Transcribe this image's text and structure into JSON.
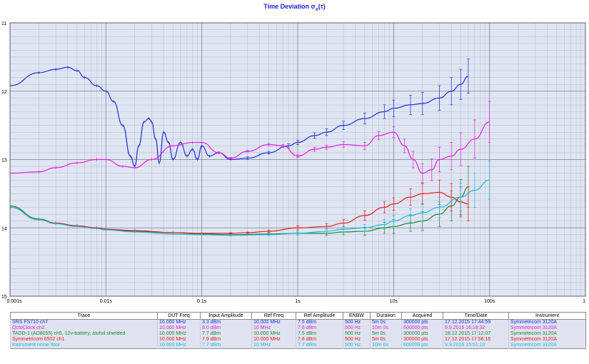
{
  "title": "Time Deviation σx(τ)",
  "title_main": "Time Deviation σ",
  "title_sub": "x",
  "title_tail": "(τ)",
  "table": {
    "headers": [
      "Trace",
      "DUT Freq",
      "Input Amplitude",
      "Ref Freq",
      "Ref Amplitude",
      "ENBW",
      "Duration",
      "Acquired",
      "Time/Date",
      "Instrument"
    ],
    "rows": [
      {
        "color": "#1f2fd4",
        "cells": [
          "SRS FS710 ch7",
          "10.000 MHz",
          "3.3 dBm",
          "10.000 MHz",
          "7.5 dBm",
          "500 Hz",
          "5m 0s",
          "300000 pts",
          "17.12.2015 17:44:59",
          "Symmetricom 3120A"
        ]
      },
      {
        "color": "#e81ce0",
        "cells": [
          "OctoClock ch2",
          "10.000 MHz",
          "8.0 dBm",
          "10 MHz",
          "7.6 dBm",
          "500 Hz",
          "10m 0s",
          "600000 pts",
          "9.9.2016 16:18:32",
          "Symmetricom 3120A"
        ]
      },
      {
        "color": "#1c8a2c",
        "cells": [
          "TADD-1 (AD8055) ch5, 12v-battery, alufoil shielded",
          "10.000 MHz",
          "7.7 dBm",
          "10.000 MHz",
          "7.5 dBm",
          "500 Hz",
          "5m 0s",
          "300000 pts",
          "18.12.2015 17:12:07",
          "Symmetricom 3120A"
        ]
      },
      {
        "color": "#e81c1c",
        "cells": [
          "Symmetricom 6502 ch1",
          "10.000 MHz",
          "7.9 dBm",
          "10.000 MHz",
          "7.8 dBm",
          "500 Hz",
          "5m 0s",
          "300000 pts",
          "17.12.2015 17:56:16",
          "Symmetricom 3120A"
        ]
      },
      {
        "color": "#1cb8e0",
        "cells": [
          "Instrument noise floor",
          "10.000 MHz",
          "7.7 dBm",
          "10 MHz",
          "7.7 dBm",
          "500 Hz",
          "10m 0s",
          "600000 pts",
          "9.9.2016 15:51:10",
          "Symmetricom 3120A"
        ]
      }
    ]
  },
  "chart_data": {
    "type": "line",
    "title": "Time Deviation σx(τ)",
    "xlabel": "",
    "ylabel": "",
    "x_scale": "log",
    "xlim": [
      0.001,
      1000
    ],
    "x_ticks": [
      "0.001s",
      "0.01s",
      "0.1s",
      "1s",
      "10s",
      "100s",
      "1"
    ],
    "ylim_exponent": [
      -11,
      -15
    ],
    "y_ticks": [
      "11",
      "12",
      "13",
      "14",
      "15"
    ],
    "grid": true,
    "background": "#e0e5f3",
    "series": [
      {
        "name": "SRS FS710 ch7",
        "color": "#1f2fd4",
        "x": [
          0.001,
          0.002,
          0.003,
          0.004,
          0.005,
          0.006,
          0.008,
          0.01,
          0.012,
          0.015,
          0.018,
          0.02,
          0.022,
          0.025,
          0.028,
          0.03,
          0.033,
          0.036,
          0.04,
          0.045,
          0.05,
          0.06,
          0.07,
          0.08,
          0.09,
          0.1,
          0.12,
          0.15,
          0.2,
          0.3,
          0.5,
          0.8,
          1,
          1.5,
          2,
          3,
          5,
          8,
          10,
          15,
          20,
          30,
          40,
          50,
          60
        ],
        "y": [
          11.92,
          11.73,
          11.68,
          11.65,
          11.7,
          11.8,
          11.92,
          12.0,
          12.15,
          12.5,
          12.95,
          13.1,
          12.8,
          12.45,
          12.4,
          12.45,
          12.7,
          13.05,
          12.6,
          12.75,
          13.0,
          12.75,
          12.95,
          12.85,
          13.0,
          12.8,
          12.95,
          12.9,
          13.0,
          12.98,
          12.9,
          12.8,
          12.75,
          12.65,
          12.6,
          12.5,
          12.4,
          12.3,
          12.25,
          12.2,
          12.18,
          12.1,
          12.0,
          11.9,
          11.78
        ],
        "err": [
          0,
          0,
          0,
          0,
          0,
          0,
          0,
          0,
          0,
          0,
          0,
          0,
          0,
          0,
          0,
          0,
          0,
          0,
          0,
          0,
          0,
          0,
          0,
          0,
          0,
          0,
          0,
          0,
          0,
          0.02,
          0.02,
          0.03,
          0.03,
          0.04,
          0.05,
          0.06,
          0.08,
          0.1,
          0.12,
          0.14,
          0.16,
          0.18,
          0.2,
          0.22,
          0.25
        ]
      },
      {
        "name": "OctoClock ch2",
        "color": "#e81ce0",
        "x": [
          0.001,
          0.002,
          0.003,
          0.005,
          0.008,
          0.01,
          0.015,
          0.02,
          0.03,
          0.05,
          0.08,
          0.1,
          0.15,
          0.2,
          0.3,
          0.5,
          0.7,
          1,
          1.5,
          2,
          3,
          5,
          7,
          10,
          13,
          16,
          20,
          25,
          30,
          40,
          50,
          70,
          100
        ],
        "y": [
          13.2,
          13.18,
          13.12,
          13.05,
          13.0,
          13.0,
          13.1,
          13.12,
          13.0,
          12.8,
          12.75,
          12.75,
          12.9,
          12.98,
          12.88,
          12.78,
          12.8,
          12.95,
          12.85,
          12.82,
          12.78,
          12.8,
          12.65,
          12.6,
          12.8,
          13.0,
          13.2,
          13.15,
          13.0,
          12.95,
          12.85,
          12.7,
          12.45
        ],
        "err": [
          0,
          0,
          0,
          0,
          0,
          0,
          0,
          0,
          0,
          0,
          0,
          0,
          0.01,
          0.01,
          0.01,
          0.02,
          0.02,
          0.02,
          0.03,
          0.03,
          0.04,
          0.05,
          0.06,
          0.08,
          0.1,
          0.12,
          0.14,
          0.16,
          0.18,
          0.2,
          0.24,
          0.28,
          0.3
        ]
      },
      {
        "name": "TADD-1 (AD8055) ch5, 12v-battery, alufoil shielded",
        "color": "#1c8a2c",
        "x": [
          0.001,
          0.002,
          0.003,
          0.005,
          0.008,
          0.01,
          0.02,
          0.05,
          0.1,
          0.2,
          0.5,
          1,
          2,
          3,
          5,
          8,
          10,
          15,
          20,
          30,
          40,
          50,
          60
        ],
        "y": [
          13.68,
          13.87,
          13.93,
          13.97,
          14.0,
          14.02,
          14.05,
          14.07,
          14.09,
          14.1,
          14.09,
          14.08,
          14.08,
          14.06,
          14.05,
          14.0,
          13.98,
          13.93,
          13.9,
          13.8,
          13.68,
          13.55,
          13.4
        ],
        "err": [
          0,
          0,
          0,
          0,
          0,
          0,
          0,
          0,
          0,
          0,
          0.01,
          0.02,
          0.03,
          0.04,
          0.06,
          0.08,
          0.1,
          0.12,
          0.14,
          0.18,
          0.22,
          0.26,
          0.3
        ]
      },
      {
        "name": "Symmetricom 6502 ch1",
        "color": "#e81c1c",
        "x": [
          0.001,
          0.002,
          0.003,
          0.005,
          0.008,
          0.01,
          0.02,
          0.05,
          0.1,
          0.2,
          0.3,
          0.5,
          1,
          2,
          3,
          5,
          8,
          10,
          15,
          20,
          30,
          40,
          50,
          60
        ],
        "y": [
          13.7,
          13.88,
          13.93,
          13.97,
          14.0,
          14.02,
          14.04,
          14.07,
          14.08,
          14.08,
          14.07,
          14.05,
          14.0,
          13.98,
          13.93,
          13.82,
          13.7,
          13.65,
          13.55,
          13.5,
          13.48,
          13.55,
          13.62,
          13.65
        ],
        "err": [
          0,
          0,
          0,
          0,
          0,
          0,
          0,
          0,
          0,
          0.01,
          0.01,
          0.02,
          0.03,
          0.04,
          0.05,
          0.07,
          0.08,
          0.09,
          0.12,
          0.15,
          0.18,
          0.2,
          0.22,
          0.25
        ]
      },
      {
        "name": "Instrument noise floor",
        "color": "#1cb8e0",
        "x": [
          0.001,
          0.002,
          0.003,
          0.005,
          0.008,
          0.01,
          0.02,
          0.05,
          0.1,
          0.2,
          0.5,
          1,
          2,
          3,
          5,
          8,
          10,
          15,
          20,
          30,
          50,
          70,
          100
        ],
        "y": [
          13.7,
          13.88,
          13.94,
          13.98,
          14.01,
          14.03,
          14.06,
          14.09,
          14.1,
          14.11,
          14.1,
          14.08,
          14.05,
          14.02,
          14.0,
          13.95,
          13.9,
          13.82,
          13.78,
          13.7,
          13.55,
          13.45,
          13.3
        ],
        "err": [
          0,
          0,
          0,
          0,
          0,
          0,
          0,
          0,
          0,
          0,
          0.01,
          0.02,
          0.03,
          0.04,
          0.05,
          0.07,
          0.08,
          0.1,
          0.12,
          0.15,
          0.2,
          0.25,
          0.28
        ]
      }
    ]
  }
}
